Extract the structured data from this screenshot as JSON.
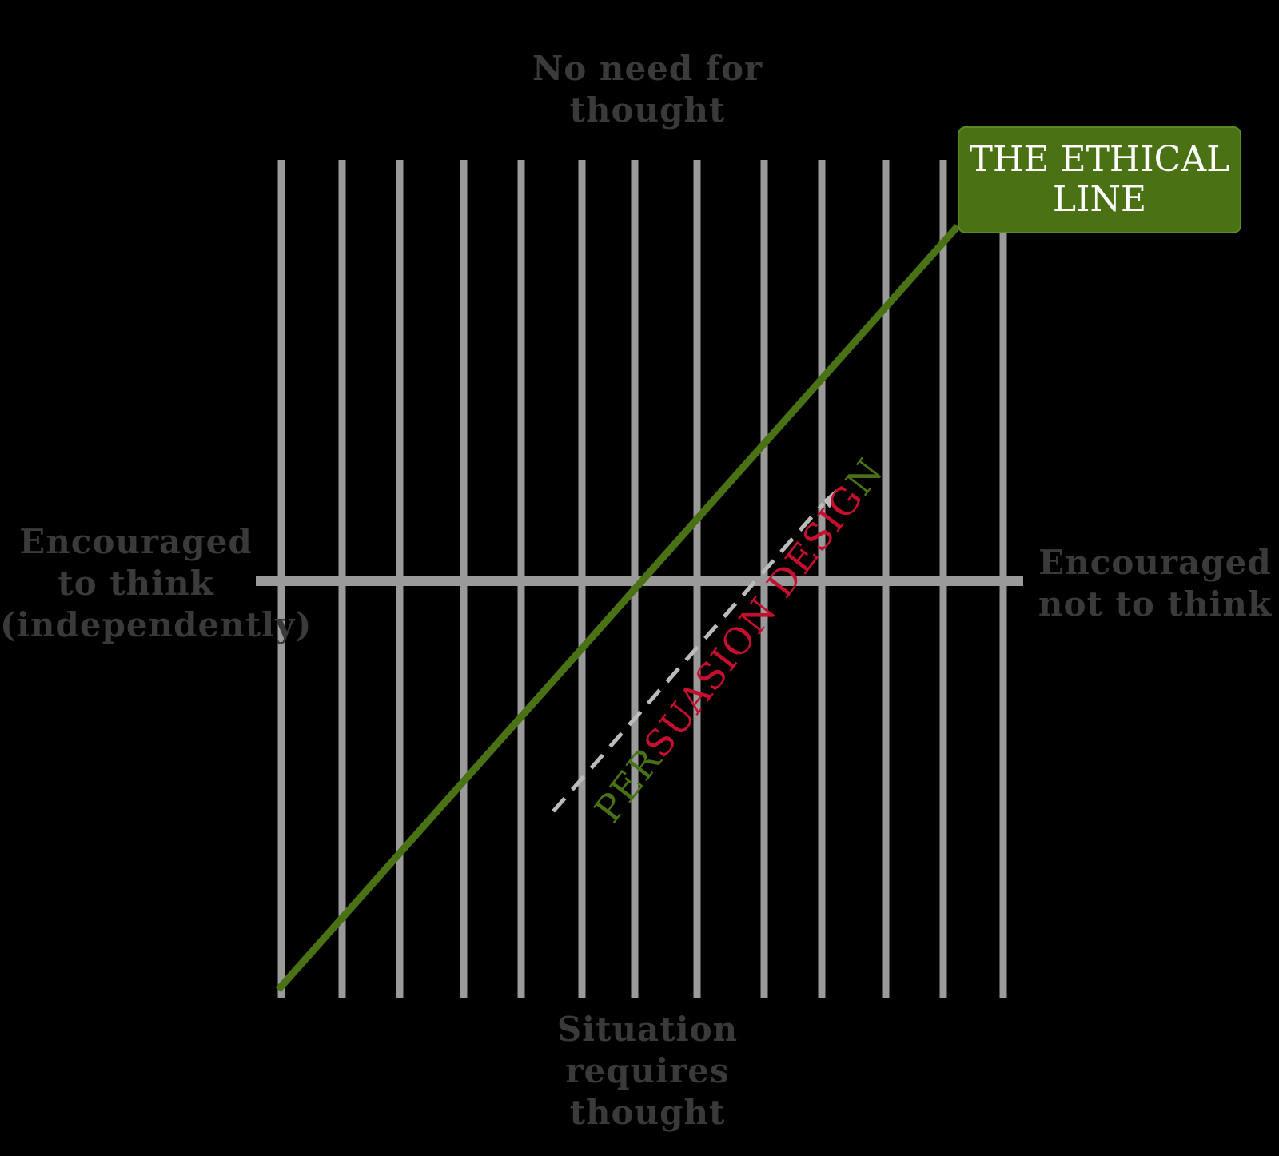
{
  "diagram": {
    "top_label": "No need for\nthought",
    "bottom_label": "Situation\nrequires\nthought",
    "left_label": "Encouraged\nto think\n(independently)",
    "right_label": "Encouraged\nnot to think",
    "ethical_line_label": "THE ETHICAL\nLINE",
    "persuasion_label_part1": "PER",
    "persuasion_label_part2": "SUASION DESIG",
    "persuasion_label_part3": "N"
  },
  "colors": {
    "background": "#000000",
    "grid": "#9a9a9a",
    "ethical_line": "#4a7214",
    "persuasion_green": "#4a7214",
    "persuasion_red": "#c4102e",
    "label_text": "#3a3a3a"
  }
}
